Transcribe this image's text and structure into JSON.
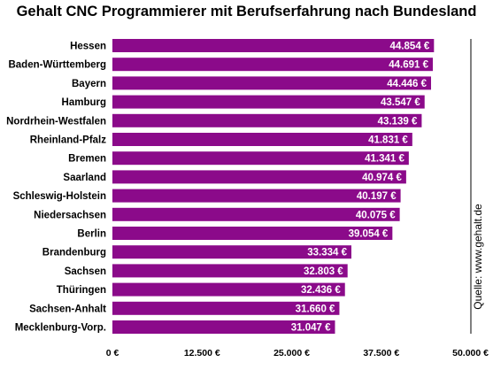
{
  "chart_data": {
    "type": "bar",
    "orientation": "horizontal",
    "title": "Gehalt CNC Programmierer mit Berufserfahrung nach Bundesland",
    "source": "Quelle: www.gehalt.de",
    "bar_color": "#8b0a8a",
    "categories": [
      "Hessen",
      "Baden-Württemberg",
      "Bayern",
      "Hamburg",
      "Nordrhein-Westfalen",
      "Rheinland-Pfalz",
      "Bremen",
      "Saarland",
      "Schleswig-Holstein",
      "Niedersachsen",
      "Berlin",
      "Brandenburg",
      "Sachsen",
      "Thüringen",
      "Sachsen-Anhalt",
      "Mecklenburg-Vorp."
    ],
    "values": [
      44854,
      44691,
      44446,
      43547,
      43139,
      41831,
      41341,
      40974,
      40197,
      40075,
      39054,
      33334,
      32803,
      32436,
      31660,
      31047
    ],
    "value_labels": [
      "44.854 €",
      "44.691 €",
      "44.446 €",
      "43.547 €",
      "43.139 €",
      "41.831 €",
      "41.341 €",
      "40.974 €",
      "40.197 €",
      "40.075 €",
      "39.054 €",
      "33.334 €",
      "32.803 €",
      "32.436 €",
      "31.660 €",
      "31.047 €"
    ],
    "xlim": [
      0,
      50000
    ],
    "xticks": [
      0,
      12500,
      25000,
      37500,
      50000
    ],
    "xtick_labels": [
      "0 €",
      "12.500 €",
      "25.000 €",
      "37.500 €",
      "50.000 €"
    ],
    "grid": false
  }
}
